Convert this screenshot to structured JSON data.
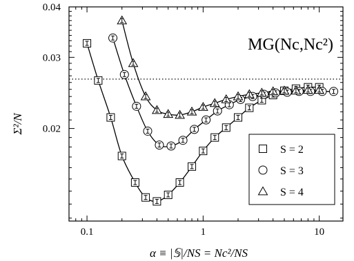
{
  "chart_data": {
    "type": "scatter",
    "xlabel": "α ≡ |𝕊|/NS = Nc²/NS",
    "ylabel": "Σ²/N",
    "xscale": "log",
    "yscale": "log",
    "xlim": [
      0.07,
      16
    ],
    "ylim": [
      0.0118,
      0.04
    ],
    "x_ticks": [
      {
        "value": 0.1,
        "label": "0.1"
      },
      {
        "value": 1,
        "label": "1"
      },
      {
        "value": 10,
        "label": "10"
      }
    ],
    "y_ticks": [
      {
        "value": 0.02,
        "label": "0.02"
      },
      {
        "value": 0.03,
        "label": "0.03"
      },
      {
        "value": 0.04,
        "label": "0.04"
      }
    ],
    "reference_line": {
      "y": 0.0265,
      "style": "dotted"
    },
    "annotation": "MG(Nc,Nc²)",
    "legend_position": "lower-right",
    "series": [
      {
        "name": "S = 2",
        "marker": "square",
        "x": [
          0.1,
          0.125,
          0.16,
          0.2,
          0.26,
          0.32,
          0.4,
          0.5,
          0.63,
          0.8,
          1.0,
          1.26,
          1.58,
          2.0,
          2.5,
          3.2,
          4.0,
          5.0,
          6.3,
          8.0,
          10.0
        ],
        "y": [
          0.0325,
          0.0263,
          0.0213,
          0.0171,
          0.0147,
          0.0135,
          0.0132,
          0.0137,
          0.0147,
          0.0161,
          0.0176,
          0.019,
          0.0201,
          0.0213,
          0.0225,
          0.0235,
          0.0242,
          0.0248,
          0.0251,
          0.0253,
          0.0253
        ]
      },
      {
        "name": "S = 3",
        "marker": "circle",
        "x": [
          0.167,
          0.21,
          0.267,
          0.333,
          0.42,
          0.53,
          0.67,
          0.84,
          1.06,
          1.33,
          1.68,
          2.1,
          2.67,
          3.35,
          4.2,
          5.3,
          6.7,
          8.4,
          10.6,
          13.3
        ],
        "y": [
          0.0335,
          0.0272,
          0.0227,
          0.0197,
          0.0182,
          0.0181,
          0.0187,
          0.0199,
          0.021,
          0.0221,
          0.0229,
          0.0236,
          0.024,
          0.0243,
          0.0245,
          0.0246,
          0.0247,
          0.0247,
          0.0247,
          0.0247
        ]
      },
      {
        "name": "S = 4",
        "marker": "triangle",
        "x": [
          0.2,
          0.25,
          0.32,
          0.4,
          0.5,
          0.63,
          0.8,
          1.0,
          1.26,
          1.58,
          2.0,
          2.5,
          3.2,
          4.0,
          5.0,
          6.3,
          8.0,
          10.0
        ],
        "y": [
          0.037,
          0.029,
          0.024,
          0.0222,
          0.0217,
          0.0216,
          0.022,
          0.0226,
          0.0231,
          0.0236,
          0.024,
          0.0243,
          0.0245,
          0.0247,
          0.0248,
          0.0248,
          0.0249,
          0.0249
        ]
      }
    ]
  }
}
